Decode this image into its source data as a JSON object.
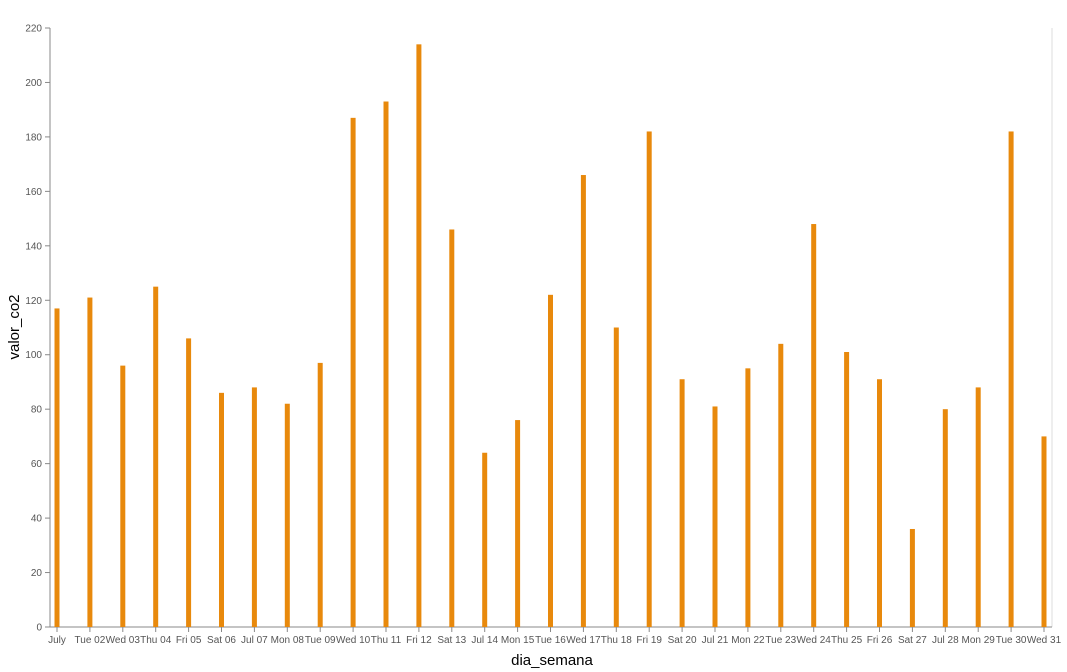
{
  "chart_data": {
    "type": "bar",
    "xlabel": "dia_semana",
    "ylabel": "valor_co2",
    "ylim": [
      0,
      220
    ],
    "yticks": [
      0,
      20,
      40,
      60,
      80,
      100,
      120,
      140,
      160,
      180,
      200,
      220
    ],
    "grid": false,
    "bar_color": "#e8890c",
    "categories": [
      "July",
      "Tue 02",
      "Wed 03",
      "Thu 04",
      "Fri 05",
      "Sat 06",
      "Jul 07",
      "Mon 08",
      "Tue 09",
      "Wed 10",
      "Thu 11",
      "Fri 12",
      "Sat 13",
      "Jul 14",
      "Mon 15",
      "Tue 16",
      "Wed 17",
      "Thu 18",
      "Fri 19",
      "Sat 20",
      "Jul 21",
      "Mon 22",
      "Tue 23",
      "Wed 24",
      "Thu 25",
      "Fri 26",
      "Sat 27",
      "Jul 28",
      "Mon 29",
      "Tue 30",
      "Wed 31"
    ],
    "values": [
      117,
      121,
      96,
      125,
      106,
      86,
      88,
      82,
      97,
      187,
      193,
      214,
      146,
      64,
      76,
      122,
      166,
      110,
      182,
      91,
      81,
      95,
      104,
      148,
      101,
      91,
      36,
      80,
      88,
      182,
      70
    ]
  }
}
